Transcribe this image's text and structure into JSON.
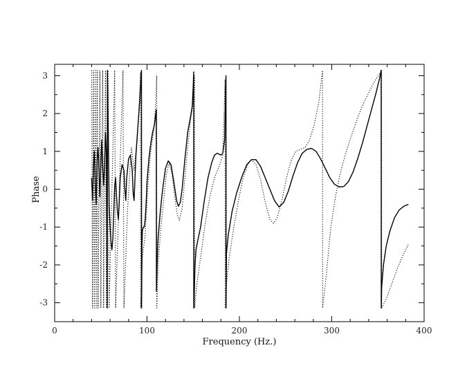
{
  "chart_data": {
    "type": "line",
    "title": "",
    "xlabel": "Frequency (Hz.)",
    "ylabel": "Phase",
    "xlim": [
      0,
      400
    ],
    "ylim": [
      -3.5,
      3.3
    ],
    "x_ticks": [
      0,
      100,
      200,
      300,
      400
    ],
    "y_ticks": [
      -3,
      -2,
      -1,
      0,
      1,
      2,
      3
    ],
    "grid": false,
    "legend": "none",
    "series": [
      {
        "style": "solid",
        "color": "#000000",
        "points": [
          [
            40,
            0.3
          ],
          [
            41,
            -0.3
          ],
          [
            42,
            0.6
          ],
          [
            43,
            1.0
          ],
          [
            44,
            0.1
          ],
          [
            45,
            -0.4
          ],
          [
            46,
            0.8
          ],
          [
            47,
            1.1
          ],
          [
            48,
            0.5
          ],
          [
            49,
            -0.2
          ],
          [
            50,
            0.7
          ],
          [
            51,
            1.3
          ],
          [
            52,
            0.6
          ],
          [
            53,
            0.1
          ],
          [
            54,
            0.6
          ],
          [
            55,
            1.5
          ],
          [
            56,
            1.0
          ],
          [
            57,
            -3.14
          ],
          [
            57.1,
            3.14
          ],
          [
            58,
            1.5
          ],
          [
            59,
            -0.4
          ],
          [
            60,
            -1.0
          ],
          [
            61,
            -1.4
          ],
          [
            62,
            -1.6
          ],
          [
            63,
            -1.3
          ],
          [
            64,
            -0.6
          ],
          [
            65,
            0.1
          ],
          [
            66,
            0.3
          ],
          [
            67,
            -0.2
          ],
          [
            68,
            -0.6
          ],
          [
            69,
            -0.8
          ],
          [
            70,
            -0.3
          ],
          [
            71,
            0.3
          ],
          [
            73,
            0.65
          ],
          [
            75,
            0.5
          ],
          [
            76,
            0.0
          ],
          [
            77,
            -0.3
          ],
          [
            78,
            0.3
          ],
          [
            80,
            0.8
          ],
          [
            82,
            0.9
          ],
          [
            84,
            0.5
          ],
          [
            85,
            -0.1
          ],
          [
            86,
            -0.3
          ],
          [
            87,
            0.3
          ],
          [
            88,
            0.9
          ],
          [
            90,
            1.6
          ],
          [
            92,
            2.3
          ],
          [
            93.5,
            2.9
          ],
          [
            94,
            3.14
          ],
          [
            94.1,
            -3.14
          ],
          [
            94.5,
            -1.5
          ],
          [
            95,
            -1.1
          ],
          [
            96,
            -1.0
          ],
          [
            97,
            -1.0
          ],
          [
            98,
            -0.8
          ],
          [
            99,
            -0.4
          ],
          [
            100,
            0.2
          ],
          [
            102,
            0.8
          ],
          [
            104,
            1.2
          ],
          [
            106,
            1.5
          ],
          [
            108,
            1.7
          ],
          [
            109,
            1.9
          ],
          [
            110,
            2.1
          ],
          [
            110.2,
            -2.7
          ],
          [
            111,
            -1.9
          ],
          [
            112,
            -1.3
          ],
          [
            114,
            -0.7
          ],
          [
            116,
            -0.2
          ],
          [
            118,
            0.2
          ],
          [
            120,
            0.55
          ],
          [
            123,
            0.75
          ],
          [
            126,
            0.65
          ],
          [
            129,
            0.2
          ],
          [
            132,
            -0.3
          ],
          [
            134,
            -0.45
          ],
          [
            136,
            -0.35
          ],
          [
            138,
            0.0
          ],
          [
            141,
            0.8
          ],
          [
            144,
            1.5
          ],
          [
            147,
            1.9
          ],
          [
            149,
            2.2
          ],
          [
            150,
            2.7
          ],
          [
            150.5,
            3.1
          ],
          [
            150.6,
            -3.14
          ],
          [
            151,
            -2.8
          ],
          [
            152,
            -2.0
          ],
          [
            153,
            -1.6
          ],
          [
            155,
            -1.35
          ],
          [
            158,
            -1.0
          ],
          [
            162,
            -0.3
          ],
          [
            166,
            0.3
          ],
          [
            170,
            0.7
          ],
          [
            173,
            0.9
          ],
          [
            176,
            0.95
          ],
          [
            180,
            0.9
          ],
          [
            182,
            0.95
          ],
          [
            184,
            1.3
          ],
          [
            185.5,
            3.0
          ],
          [
            185.6,
            -3.14
          ],
          [
            186,
            -1.7
          ],
          [
            188,
            -1.2
          ],
          [
            192,
            -0.6
          ],
          [
            197,
            -0.1
          ],
          [
            203,
            0.35
          ],
          [
            208,
            0.65
          ],
          [
            213,
            0.78
          ],
          [
            218,
            0.78
          ],
          [
            223,
            0.6
          ],
          [
            228,
            0.3
          ],
          [
            233,
            0.0
          ],
          [
            238,
            -0.3
          ],
          [
            243,
            -0.47
          ],
          [
            248,
            -0.35
          ],
          [
            253,
            -0.05
          ],
          [
            258,
            0.35
          ],
          [
            263,
            0.7
          ],
          [
            268,
            0.95
          ],
          [
            273,
            1.05
          ],
          [
            278,
            1.08
          ],
          [
            283,
            1.0
          ],
          [
            288,
            0.8
          ],
          [
            293,
            0.55
          ],
          [
            298,
            0.3
          ],
          [
            303,
            0.13
          ],
          [
            308,
            0.06
          ],
          [
            313,
            0.07
          ],
          [
            318,
            0.2
          ],
          [
            323,
            0.45
          ],
          [
            328,
            0.8
          ],
          [
            333,
            1.2
          ],
          [
            338,
            1.65
          ],
          [
            343,
            2.1
          ],
          [
            348,
            2.55
          ],
          [
            352,
            2.95
          ],
          [
            353.5,
            3.14
          ],
          [
            353.6,
            -3.14
          ],
          [
            354,
            -2.6
          ],
          [
            356,
            -2.0
          ],
          [
            359,
            -1.5
          ],
          [
            363,
            -1.1
          ],
          [
            368,
            -0.75
          ],
          [
            373,
            -0.55
          ],
          [
            378,
            -0.45
          ],
          [
            383,
            -0.4
          ]
        ]
      },
      {
        "style": "dotted",
        "color": "#000000",
        "points": [
          [
            40,
            3.14
          ],
          [
            41,
            -3.14
          ],
          [
            42,
            3.14
          ],
          [
            43,
            -3.14
          ],
          [
            44,
            3.14
          ],
          [
            45,
            -3.14
          ],
          [
            46,
            3.14
          ],
          [
            47,
            -3.14
          ],
          [
            49,
            3.14
          ],
          [
            50,
            -3.14
          ],
          [
            52,
            3.14
          ],
          [
            53,
            -3.14
          ],
          [
            55,
            3.14
          ],
          [
            56,
            -3.14
          ],
          [
            58,
            3.14
          ],
          [
            59,
            -3.14
          ],
          [
            62,
            0.0
          ],
          [
            65,
            3.14
          ],
          [
            66,
            -3.14
          ],
          [
            70,
            0.0
          ],
          [
            74,
            3.14
          ],
          [
            75,
            -3.14
          ],
          [
            79,
            -0.5
          ],
          [
            83,
            1.1
          ],
          [
            86,
            0.5
          ],
          [
            88,
            1.0
          ],
          [
            91,
            2.0
          ],
          [
            93,
            3.1
          ],
          [
            93.2,
            -3.14
          ],
          [
            95,
            -1.8
          ],
          [
            98,
            -1.2
          ],
          [
            101,
            0.1
          ],
          [
            104,
            1.0
          ],
          [
            107,
            1.5
          ],
          [
            109,
            2.1
          ],
          [
            110.5,
            3.0
          ],
          [
            110.6,
            -3.14
          ],
          [
            112,
            -2.0
          ],
          [
            115,
            -1.0
          ],
          [
            118,
            -0.3
          ],
          [
            121,
            0.4
          ],
          [
            124,
            0.7
          ],
          [
            127,
            0.4
          ],
          [
            130,
            -0.2
          ],
          [
            133,
            -0.7
          ],
          [
            135,
            -0.82
          ],
          [
            138,
            -0.5
          ],
          [
            141,
            0.3
          ],
          [
            144,
            1.1
          ],
          [
            147,
            1.8
          ],
          [
            150,
            2.3
          ],
          [
            151.5,
            3.0
          ],
          [
            151.6,
            -3.14
          ],
          [
            154,
            -2.5
          ],
          [
            158,
            -1.8
          ],
          [
            163,
            -0.9
          ],
          [
            168,
            -0.2
          ],
          [
            173,
            0.3
          ],
          [
            178,
            0.6
          ],
          [
            182,
            0.9
          ],
          [
            184.5,
            2.9
          ],
          [
            184.6,
            -3.14
          ],
          [
            186,
            -2.5
          ],
          [
            189,
            -1.8
          ],
          [
            194,
            -1.0
          ],
          [
            199,
            -0.3
          ],
          [
            204,
            0.3
          ],
          [
            209,
            0.65
          ],
          [
            213,
            0.78
          ],
          [
            218,
            0.65
          ],
          [
            223,
            0.25
          ],
          [
            228,
            -0.35
          ],
          [
            233,
            -0.8
          ],
          [
            237,
            -0.9
          ],
          [
            241,
            -0.75
          ],
          [
            246,
            -0.3
          ],
          [
            251,
            0.3
          ],
          [
            256,
            0.75
          ],
          [
            261,
            1.0
          ],
          [
            266,
            1.05
          ],
          [
            271,
            1.1
          ],
          [
            276,
            1.3
          ],
          [
            281,
            1.7
          ],
          [
            286,
            2.3
          ],
          [
            290,
            3.14
          ],
          [
            290.1,
            -3.14
          ],
          [
            294,
            -2.3
          ],
          [
            299,
            -1.0
          ],
          [
            304,
            -0.2
          ],
          [
            309,
            0.4
          ],
          [
            314,
            0.85
          ],
          [
            319,
            1.25
          ],
          [
            324,
            1.6
          ],
          [
            329,
            1.95
          ],
          [
            334,
            2.25
          ],
          [
            339,
            2.5
          ],
          [
            344,
            2.75
          ],
          [
            349,
            2.95
          ],
          [
            354,
            3.14
          ],
          [
            354.1,
            -3.14
          ],
          [
            359,
            -2.9
          ],
          [
            365,
            -2.5
          ],
          [
            371,
            -2.1
          ],
          [
            377,
            -1.75
          ],
          [
            383,
            -1.45
          ]
        ]
      }
    ]
  }
}
